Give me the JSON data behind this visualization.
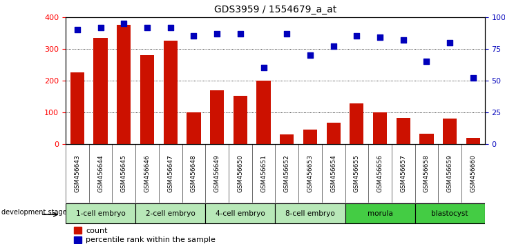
{
  "title": "GDS3959 / 1554679_a_at",
  "samples": [
    "GSM456643",
    "GSM456644",
    "GSM456645",
    "GSM456646",
    "GSM456647",
    "GSM456648",
    "GSM456649",
    "GSM456650",
    "GSM456651",
    "GSM456652",
    "GSM456653",
    "GSM456654",
    "GSM456655",
    "GSM456656",
    "GSM456657",
    "GSM456658",
    "GSM456659",
    "GSM456660"
  ],
  "counts": [
    225,
    335,
    375,
    280,
    325,
    100,
    170,
    152,
    200,
    30,
    45,
    68,
    128,
    100,
    82,
    33,
    80,
    20
  ],
  "percentile_ranks": [
    90,
    92,
    95,
    92,
    92,
    85,
    87,
    87,
    60,
    87,
    70,
    77,
    85,
    84,
    82,
    65,
    80,
    52
  ],
  "stages": [
    {
      "label": "1-cell embryo",
      "start": 0,
      "end": 3
    },
    {
      "label": "2-cell embryo",
      "start": 3,
      "end": 6
    },
    {
      "label": "4-cell embryo",
      "start": 6,
      "end": 9
    },
    {
      "label": "8-cell embryo",
      "start": 9,
      "end": 12
    },
    {
      "label": "morula",
      "start": 12,
      "end": 15
    },
    {
      "label": "blastocyst",
      "start": 15,
      "end": 18
    }
  ],
  "stage_colors": {
    "1-cell embryo": "#b8e8b8",
    "2-cell embryo": "#b8e8b8",
    "4-cell embryo": "#b8e8b8",
    "8-cell embryo": "#b8e8b8",
    "morula": "#44cc44",
    "blastocyst": "#44cc44"
  },
  "bar_color": "#cc1100",
  "dot_color": "#0000bb",
  "ylim_left": [
    0,
    400
  ],
  "ylim_right": [
    0,
    100
  ],
  "yticks_left": [
    0,
    100,
    200,
    300,
    400
  ],
  "yticks_right": [
    0,
    25,
    50,
    75,
    100
  ],
  "grid_values": [
    100,
    200,
    300
  ],
  "legend_count": "count",
  "legend_pct": "percentile rank within the sample",
  "sample_label_bg": "#d0d0d0",
  "plot_bg": "white"
}
